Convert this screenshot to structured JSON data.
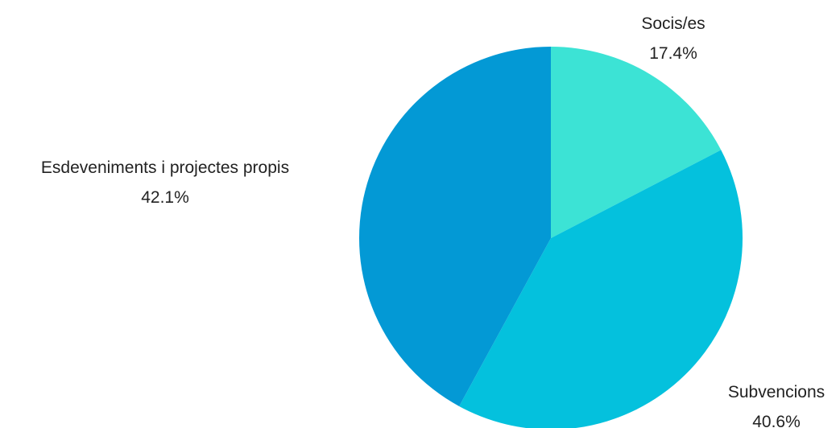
{
  "chart_data": {
    "type": "pie",
    "title": "",
    "slices": [
      {
        "label": "Socis/es",
        "value": 17.4,
        "value_label": "17.4%",
        "color": "#3ce3d5"
      },
      {
        "label": "Subvencions",
        "value": 40.6,
        "value_label": "40.6%",
        "color": "#04c1dd"
      },
      {
        "label": "Esdeveniments i projectes propis",
        "value": 42.1,
        "value_label": "42.1%",
        "color": "#0399d5"
      }
    ],
    "start_angle": "12 o'clock",
    "direction": "clockwise",
    "legend": "none",
    "labels": "outside"
  }
}
